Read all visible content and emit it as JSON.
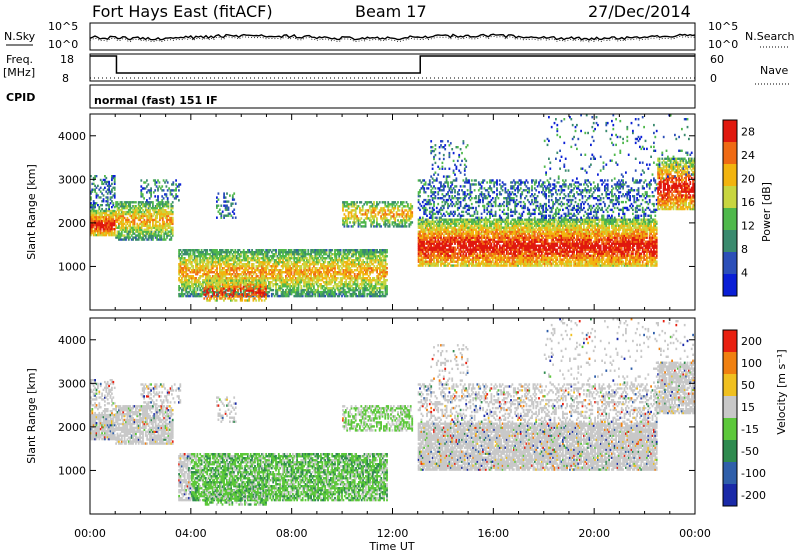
{
  "header": {
    "radar": "Fort Hays East (fitACF)",
    "beam": "Beam 17",
    "date": "27/Dec/2014"
  },
  "top_panels": {
    "nsky_label": "N.Sky",
    "nsearch_label": "N.Search",
    "freq_label_1": "Freq.",
    "freq_label_2": "[MHz]",
    "nave_label": "Nave",
    "cpid_label": "CPID",
    "cpid_value": "normal (fast) 151 IF",
    "noise_ticks": [
      "10^5",
      "10^0"
    ],
    "noise_right_ticks": [
      "10^5",
      "10^0"
    ],
    "freq_ticks": [
      "18",
      "8"
    ],
    "nave_ticks": [
      "60",
      "0"
    ]
  },
  "chart_data": [
    {
      "type": "heatmap",
      "panel": "power",
      "title": "",
      "xlabel": "",
      "ylabel": "Slant Range [km]",
      "xlim": [
        0,
        24
      ],
      "ylim": [
        0,
        4500
      ],
      "yticks": [
        1000,
        2000,
        3000,
        4000
      ],
      "colorbar_label": "Power [dB]",
      "colorbar_ticks": [
        4,
        8,
        12,
        16,
        20,
        24,
        28
      ],
      "colorbar_range": [
        0,
        30
      ],
      "colors": [
        "#0a1fd6",
        "#2c4fb8",
        "#3a8a6e",
        "#4fb84b",
        "#c8d640",
        "#f2b40f",
        "#ef6a14",
        "#e0180e"
      ]
    },
    {
      "type": "heatmap",
      "panel": "velocity",
      "title": "",
      "xlabel": "Time UT",
      "ylabel": "Slant Range [km]",
      "xlim": [
        0,
        24
      ],
      "ylim": [
        0,
        4500
      ],
      "xtick_labels": [
        "00:00",
        "04:00",
        "08:00",
        "12:00",
        "16:00",
        "20:00",
        "00:00"
      ],
      "yticks": [
        1000,
        2000,
        3000,
        4000
      ],
      "colorbar_label": "Velocity [m s⁻¹]",
      "colorbar_ticks": [
        "200",
        "100",
        "50",
        "15",
        "-15",
        "-50",
        "-100",
        "-200"
      ],
      "colors": [
        "#1a2aa8",
        "#2f5faa",
        "#2e8a4e",
        "#5cc83a",
        "#c8c8c8",
        "#f0c020",
        "#f08010",
        "#e82010"
      ]
    }
  ]
}
